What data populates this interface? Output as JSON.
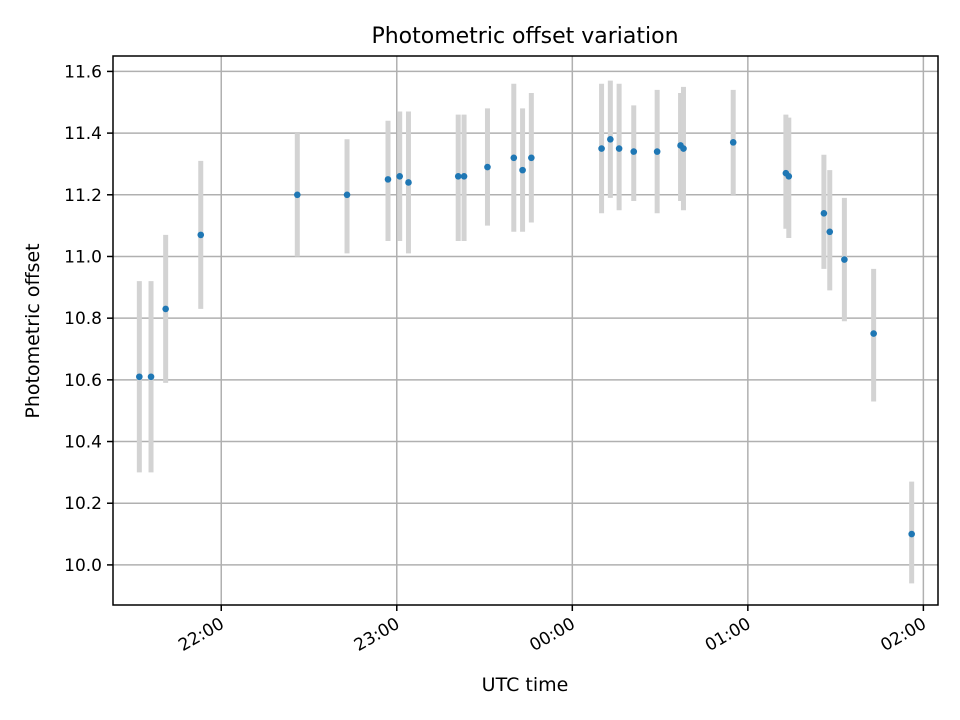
{
  "chart_data": {
    "type": "scatter",
    "title": "Photometric offset variation",
    "xlabel": "UTC time",
    "ylabel": "Photometric offset",
    "x_scale": "time",
    "xlim": [
      "21:23",
      "02:05"
    ],
    "ylim": [
      9.87,
      11.65
    ],
    "x_ticks": [
      "22:00",
      "23:00",
      "00:00",
      "01:00",
      "02:00"
    ],
    "y_ticks": [
      "10.0",
      "10.2",
      "10.4",
      "10.6",
      "10.8",
      "11.0",
      "11.2",
      "11.4",
      "11.6"
    ],
    "grid": true,
    "markers": "points with grey error bars",
    "colors": {
      "points": "#1f77b4",
      "error_bars": "#d3d3d3"
    },
    "points": [
      {
        "time": "21:36",
        "y": 10.61,
        "ylo": 10.3,
        "yhi": 10.92
      },
      {
        "time": "21:32",
        "y": 10.61,
        "ylo": 10.3,
        "yhi": 10.92
      },
      {
        "time": "21:41",
        "y": 10.83,
        "ylo": 10.59,
        "yhi": 11.07
      },
      {
        "time": "21:53",
        "y": 11.07,
        "ylo": 10.83,
        "yhi": 11.31
      },
      {
        "time": "22:26",
        "y": 11.2,
        "ylo": 11.0,
        "yhi": 11.4
      },
      {
        "time": "22:43",
        "y": 11.2,
        "ylo": 11.01,
        "yhi": 11.38
      },
      {
        "time": "22:57",
        "y": 11.25,
        "ylo": 11.05,
        "yhi": 11.44
      },
      {
        "time": "23:01",
        "y": 11.26,
        "ylo": 11.05,
        "yhi": 11.47
      },
      {
        "time": "23:04",
        "y": 11.24,
        "ylo": 11.01,
        "yhi": 11.47
      },
      {
        "time": "23:21",
        "y": 11.26,
        "ylo": 11.05,
        "yhi": 11.46
      },
      {
        "time": "23:23",
        "y": 11.26,
        "ylo": 11.05,
        "yhi": 11.46
      },
      {
        "time": "23:31",
        "y": 11.29,
        "ylo": 11.1,
        "yhi": 11.48
      },
      {
        "time": "23:40",
        "y": 11.32,
        "ylo": 11.08,
        "yhi": 11.56
      },
      {
        "time": "23:43",
        "y": 11.28,
        "ylo": 11.08,
        "yhi": 11.48
      },
      {
        "time": "23:46",
        "y": 11.32,
        "ylo": 11.11,
        "yhi": 11.53
      },
      {
        "time": "00:10",
        "y": 11.35,
        "ylo": 11.14,
        "yhi": 11.56
      },
      {
        "time": "00:13",
        "y": 11.38,
        "ylo": 11.19,
        "yhi": 11.57
      },
      {
        "time": "00:16",
        "y": 11.35,
        "ylo": 11.15,
        "yhi": 11.56
      },
      {
        "time": "00:21",
        "y": 11.34,
        "ylo": 11.18,
        "yhi": 11.49
      },
      {
        "time": "00:29",
        "y": 11.34,
        "ylo": 11.14,
        "yhi": 11.54
      },
      {
        "time": "00:37",
        "y": 11.36,
        "ylo": 11.18,
        "yhi": 11.53
      },
      {
        "time": "00:38",
        "y": 11.35,
        "ylo": 11.15,
        "yhi": 11.55
      },
      {
        "time": "00:55",
        "y": 11.37,
        "ylo": 11.2,
        "yhi": 11.54
      },
      {
        "time": "01:13",
        "y": 11.27,
        "ylo": 11.09,
        "yhi": 11.46
      },
      {
        "time": "01:14",
        "y": 11.26,
        "ylo": 11.06,
        "yhi": 11.45
      },
      {
        "time": "01:26",
        "y": 11.14,
        "ylo": 10.96,
        "yhi": 11.33
      },
      {
        "time": "01:28",
        "y": 11.08,
        "ylo": 10.89,
        "yhi": 11.28
      },
      {
        "time": "01:33",
        "y": 10.99,
        "ylo": 10.79,
        "yhi": 11.19
      },
      {
        "time": "01:43",
        "y": 10.75,
        "ylo": 10.53,
        "yhi": 10.96
      },
      {
        "time": "01:56",
        "y": 10.1,
        "ylo": 9.94,
        "yhi": 10.27
      }
    ]
  }
}
